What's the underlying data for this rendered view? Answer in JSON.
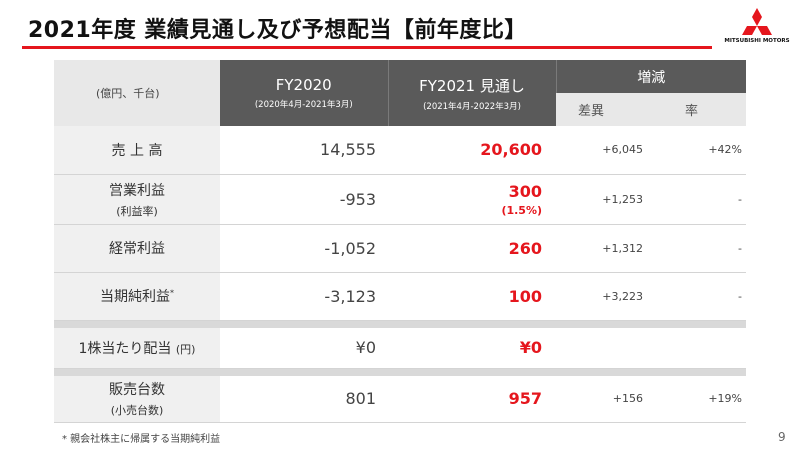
{
  "header": {
    "title": "2021年度 業績見通し及び予想配当【前年度比】",
    "logo_text": "MITSUBISHI MOTORS",
    "brand_color": "#e5161d"
  },
  "table": {
    "unit_label": "(億円、千台)",
    "fy2020": {
      "title": "FY2020",
      "period": "(2020年4月-2021年3月)"
    },
    "fy2021": {
      "title": "FY2021 見通し",
      "period": "(2021年4月-2022年3月)"
    },
    "change": {
      "title": "増減",
      "diff": "差異",
      "rate": "率"
    },
    "rows": [
      {
        "label": "売 上 高",
        "sub": "",
        "fy2020": "14,555",
        "fy2021": "20,600",
        "fy2021_sub": "",
        "diff": "+6,045",
        "rate": "+42%"
      },
      {
        "label": "営業利益",
        "sub": "(利益率)",
        "fy2020": "-953",
        "fy2021": "300",
        "fy2021_sub": "(1.5%)",
        "diff": "+1,253",
        "rate": "-"
      },
      {
        "label": "経常利益",
        "sub": "",
        "fy2020": "-1,052",
        "fy2021": "260",
        "fy2021_sub": "",
        "diff": "+1,312",
        "rate": "-"
      },
      {
        "label": "当期純利益",
        "label_mark": "*",
        "sub": "",
        "fy2020": "-3,123",
        "fy2021": "100",
        "fy2021_sub": "",
        "diff": "+3,223",
        "rate": "-"
      }
    ],
    "dividend": {
      "label": "1株当たり配当",
      "unit": "(円)",
      "fy2020": "¥0",
      "fy2021": "¥0",
      "diff": "",
      "rate": ""
    },
    "sales": {
      "label": "販売台数",
      "sub": "(小売台数)",
      "fy2020": "801",
      "fy2021": "957",
      "diff": "+156",
      "rate": "+19%"
    }
  },
  "footnote": "* 親会社株主に帰属する当期純利益",
  "page_number": "9"
}
